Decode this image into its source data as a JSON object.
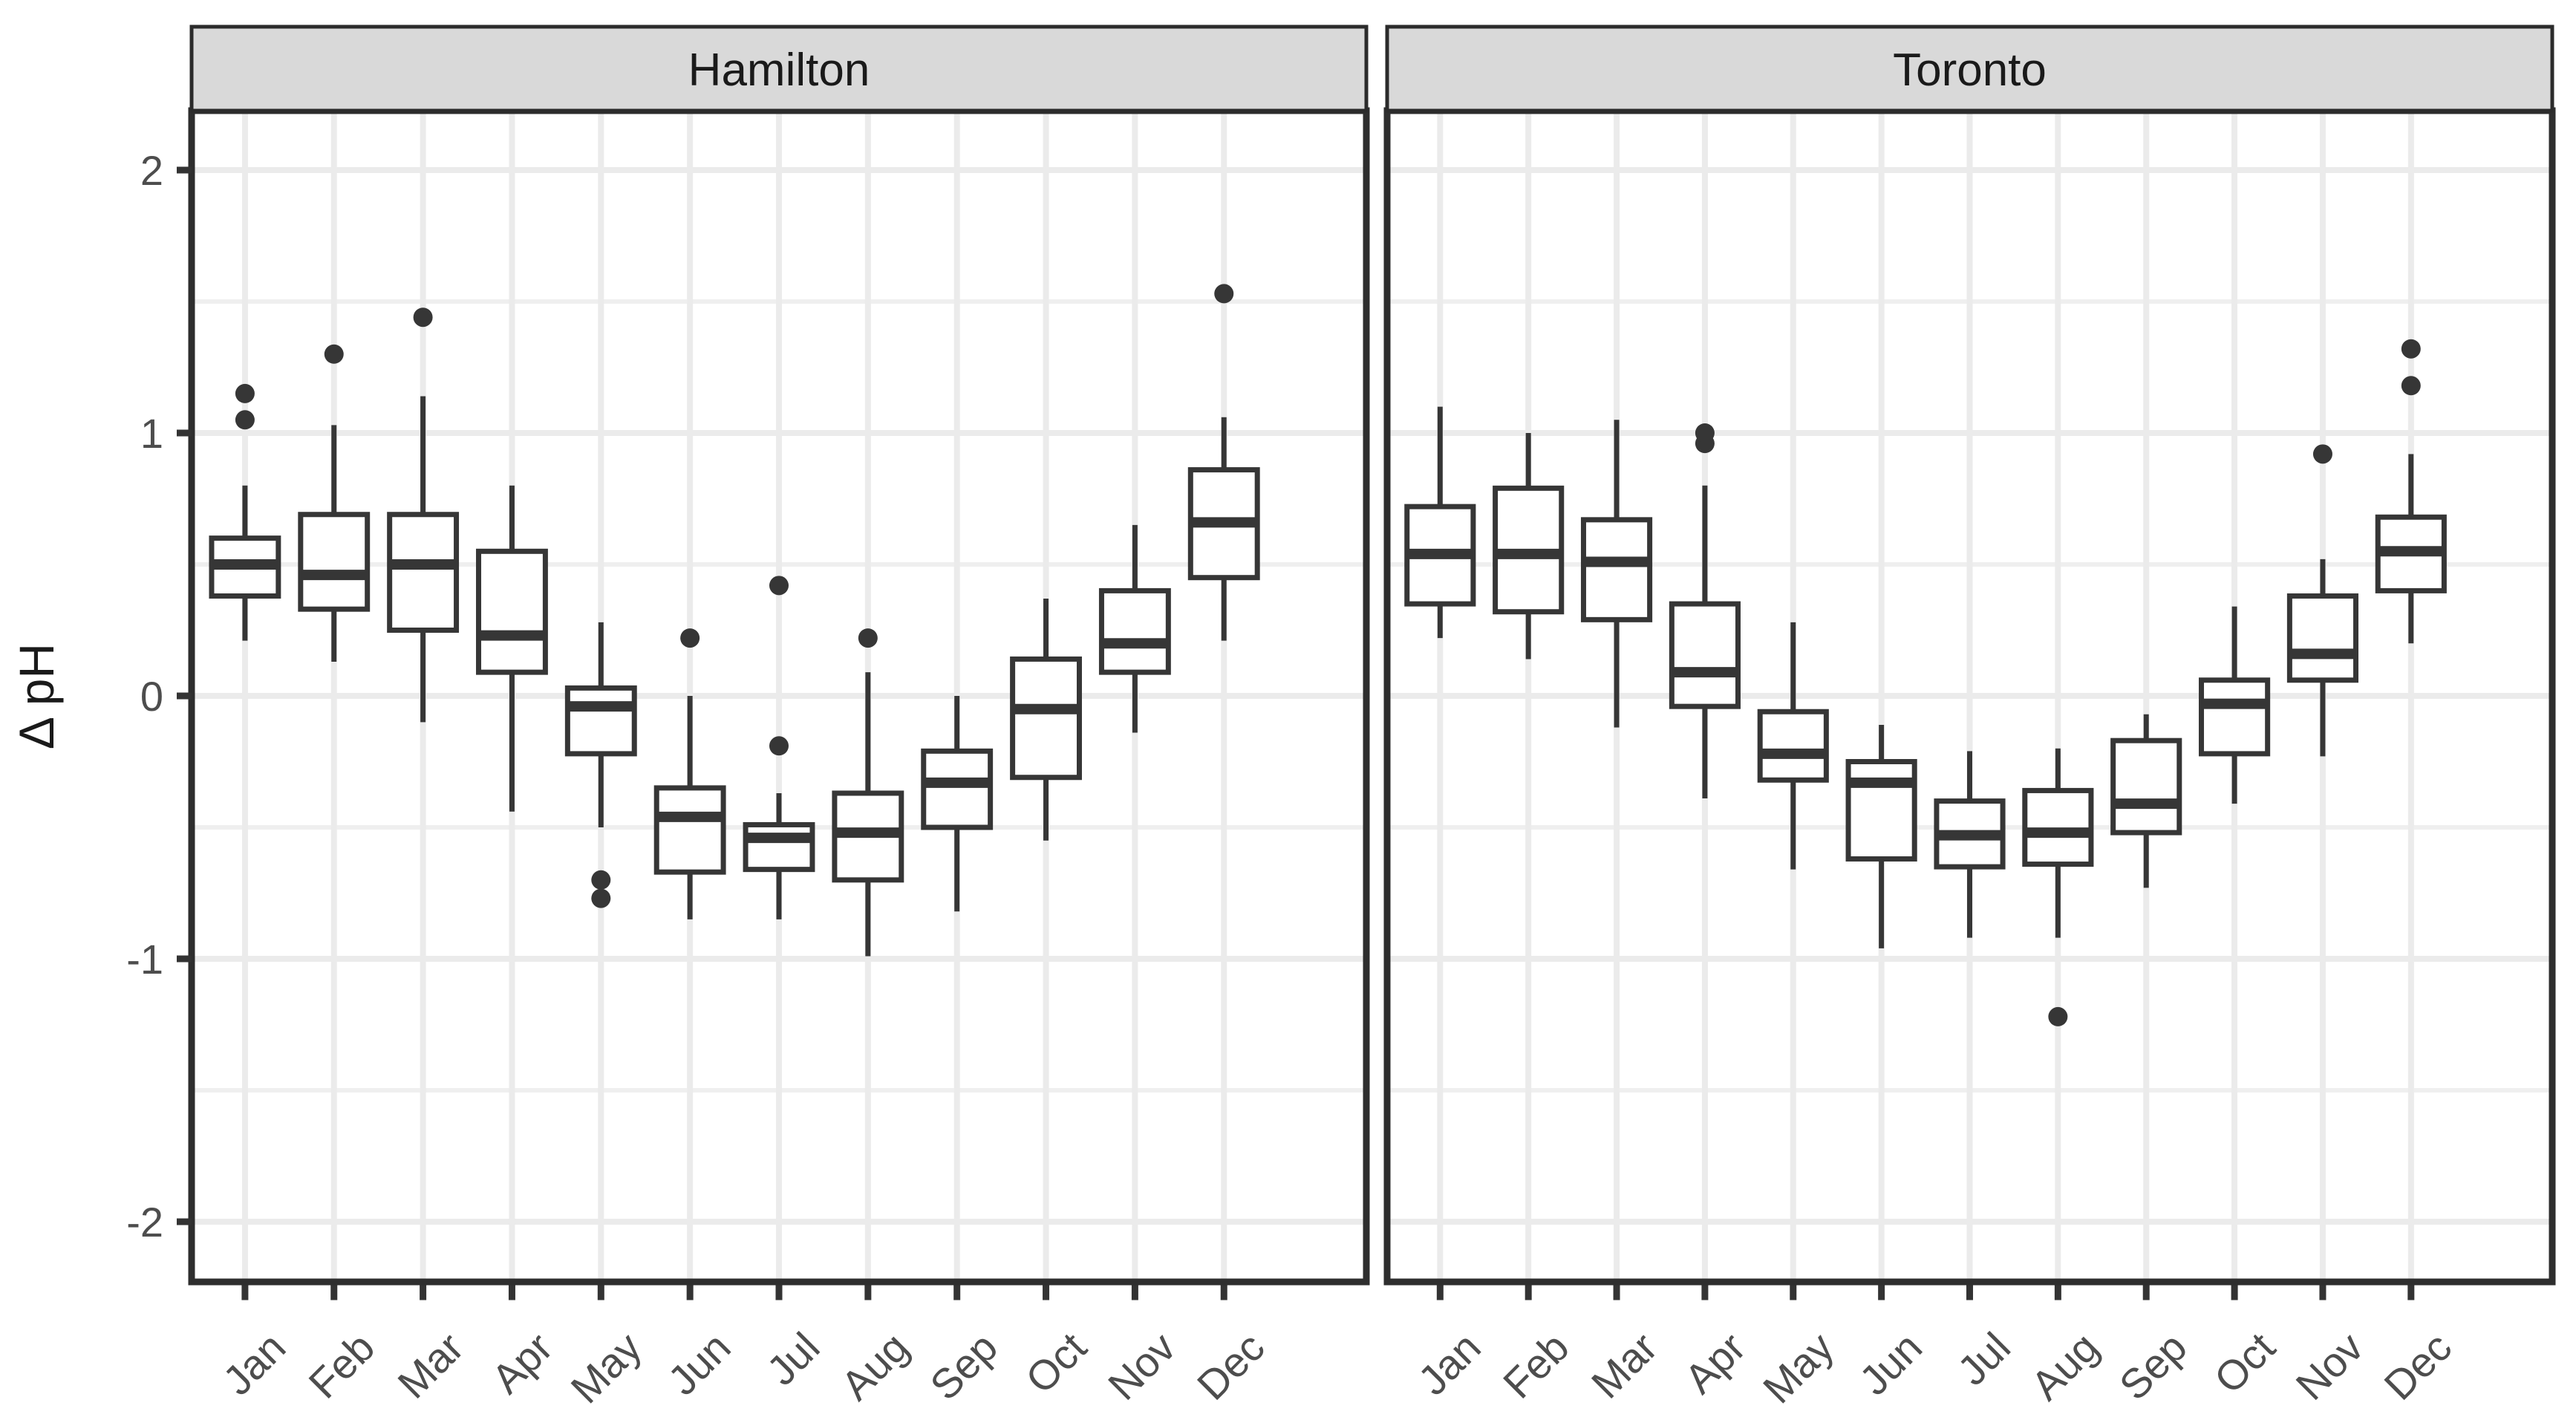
{
  "figure": {
    "facet_labels": [
      "Hamilton",
      "Toronto"
    ],
    "y_axis": {
      "title": "Δ pH",
      "tick_labels": [
        "2",
        "1",
        "0",
        "-1",
        "-2"
      ],
      "tick_values": [
        2,
        1,
        0,
        -1,
        -2
      ]
    },
    "x_axis": {
      "labels": [
        "Jan",
        "Feb",
        "Mar",
        "Apr",
        "May",
        "Jun",
        "Jul",
        "Aug",
        "Sep",
        "Oct",
        "Nov",
        "Dec"
      ]
    },
    "colors": {
      "box_stroke": "#363636",
      "box_fill": "#ffffff",
      "outlier": "#363636",
      "grid_major": "#ebebeb",
      "grid_minor": "#efefef",
      "panel_border": "#2e2e2e",
      "panel_bg": "#ffffff",
      "strip_fill": "#d9d9d9",
      "strip_border": "#2b2b2b",
      "axis_text": "#4d4d4d",
      "tick_mark": "#333333",
      "title_text": "#1a1a1a"
    }
  },
  "chart_data": {
    "type": "boxplot",
    "title": "",
    "xlabel": "",
    "ylabel": "Δ pH",
    "ylim": [
      -2.23,
      2.23
    ],
    "y_major_ticks": [
      2,
      1,
      0,
      -1,
      -2
    ],
    "y_minor_gridlines": [
      1.5,
      0.5,
      -0.5,
      -1.5
    ],
    "grid": "on",
    "legend": "none",
    "categories": [
      "Jan",
      "Feb",
      "Mar",
      "Apr",
      "May",
      "Jun",
      "Jul",
      "Aug",
      "Sep",
      "Oct",
      "Nov",
      "Dec"
    ],
    "facets": [
      {
        "name": "Hamilton",
        "boxes": [
          {
            "month": "Jan",
            "whisker_low": 0.21,
            "q1": 0.38,
            "median": 0.5,
            "q3": 0.6,
            "whisker_high": 0.8,
            "outliers": [
              1.05,
              1.15
            ]
          },
          {
            "month": "Feb",
            "whisker_low": 0.13,
            "q1": 0.33,
            "median": 0.46,
            "q3": 0.69,
            "whisker_high": 1.03,
            "outliers": [
              1.3
            ]
          },
          {
            "month": "Mar",
            "whisker_low": -0.1,
            "q1": 0.25,
            "median": 0.5,
            "q3": 0.69,
            "whisker_high": 1.14,
            "outliers": [
              1.44
            ]
          },
          {
            "month": "Apr",
            "whisker_low": -0.44,
            "q1": 0.09,
            "median": 0.23,
            "q3": 0.55,
            "whisker_high": 0.8,
            "outliers": []
          },
          {
            "month": "May",
            "whisker_low": -0.5,
            "q1": -0.22,
            "median": -0.04,
            "q3": 0.03,
            "whisker_high": 0.28,
            "outliers": [
              -0.7,
              -0.77
            ]
          },
          {
            "month": "Jun",
            "whisker_low": -0.85,
            "q1": -0.67,
            "median": -0.46,
            "q3": -0.35,
            "whisker_high": 0.0,
            "outliers": [
              0.22
            ]
          },
          {
            "month": "Jul",
            "whisker_low": -0.85,
            "q1": -0.66,
            "median": -0.54,
            "q3": -0.49,
            "whisker_high": -0.37,
            "outliers": [
              0.42,
              -0.19
            ]
          },
          {
            "month": "Aug",
            "whisker_low": -0.99,
            "q1": -0.7,
            "median": -0.52,
            "q3": -0.37,
            "whisker_high": 0.09,
            "outliers": [
              0.22
            ]
          },
          {
            "month": "Sep",
            "whisker_low": -0.82,
            "q1": -0.5,
            "median": -0.33,
            "q3": -0.21,
            "whisker_high": 0.0,
            "outliers": []
          },
          {
            "month": "Oct",
            "whisker_low": -0.55,
            "q1": -0.31,
            "median": -0.05,
            "q3": 0.14,
            "whisker_high": 0.37,
            "outliers": []
          },
          {
            "month": "Nov",
            "whisker_low": -0.14,
            "q1": 0.09,
            "median": 0.2,
            "q3": 0.4,
            "whisker_high": 0.65,
            "outliers": []
          },
          {
            "month": "Dec",
            "whisker_low": 0.21,
            "q1": 0.45,
            "median": 0.66,
            "q3": 0.86,
            "whisker_high": 1.06,
            "outliers": [
              1.53
            ]
          }
        ]
      },
      {
        "name": "Toronto",
        "boxes": [
          {
            "month": "Jan",
            "whisker_low": 0.22,
            "q1": 0.35,
            "median": 0.54,
            "q3": 0.72,
            "whisker_high": 1.1,
            "outliers": []
          },
          {
            "month": "Feb",
            "whisker_low": 0.14,
            "q1": 0.32,
            "median": 0.54,
            "q3": 0.79,
            "whisker_high": 1.0,
            "outliers": []
          },
          {
            "month": "Mar",
            "whisker_low": -0.12,
            "q1": 0.29,
            "median": 0.51,
            "q3": 0.67,
            "whisker_high": 1.05,
            "outliers": []
          },
          {
            "month": "Apr",
            "whisker_low": -0.39,
            "q1": -0.04,
            "median": 0.09,
            "q3": 0.35,
            "whisker_high": 0.8,
            "outliers": [
              0.96,
              1.0
            ]
          },
          {
            "month": "May",
            "whisker_low": -0.66,
            "q1": -0.32,
            "median": -0.22,
            "q3": -0.06,
            "whisker_high": 0.28,
            "outliers": []
          },
          {
            "month": "Jun",
            "whisker_low": -0.96,
            "q1": -0.62,
            "median": -0.33,
            "q3": -0.25,
            "whisker_high": -0.11,
            "outliers": []
          },
          {
            "month": "Jul",
            "whisker_low": -0.92,
            "q1": -0.65,
            "median": -0.53,
            "q3": -0.4,
            "whisker_high": -0.21,
            "outliers": []
          },
          {
            "month": "Aug",
            "whisker_low": -0.92,
            "q1": -0.64,
            "median": -0.52,
            "q3": -0.36,
            "whisker_high": -0.2,
            "outliers": [
              -1.22
            ]
          },
          {
            "month": "Sep",
            "whisker_low": -0.73,
            "q1": -0.52,
            "median": -0.41,
            "q3": -0.17,
            "whisker_high": -0.07,
            "outliers": []
          },
          {
            "month": "Oct",
            "whisker_low": -0.41,
            "q1": -0.22,
            "median": -0.03,
            "q3": 0.06,
            "whisker_high": 0.34,
            "outliers": []
          },
          {
            "month": "Nov",
            "whisker_low": -0.23,
            "q1": 0.06,
            "median": 0.16,
            "q3": 0.38,
            "whisker_high": 0.52,
            "outliers": [
              0.92
            ]
          },
          {
            "month": "Dec",
            "whisker_low": 0.2,
            "q1": 0.4,
            "median": 0.55,
            "q3": 0.68,
            "whisker_high": 0.92,
            "outliers": [
              1.18,
              1.32
            ]
          }
        ]
      }
    ]
  }
}
